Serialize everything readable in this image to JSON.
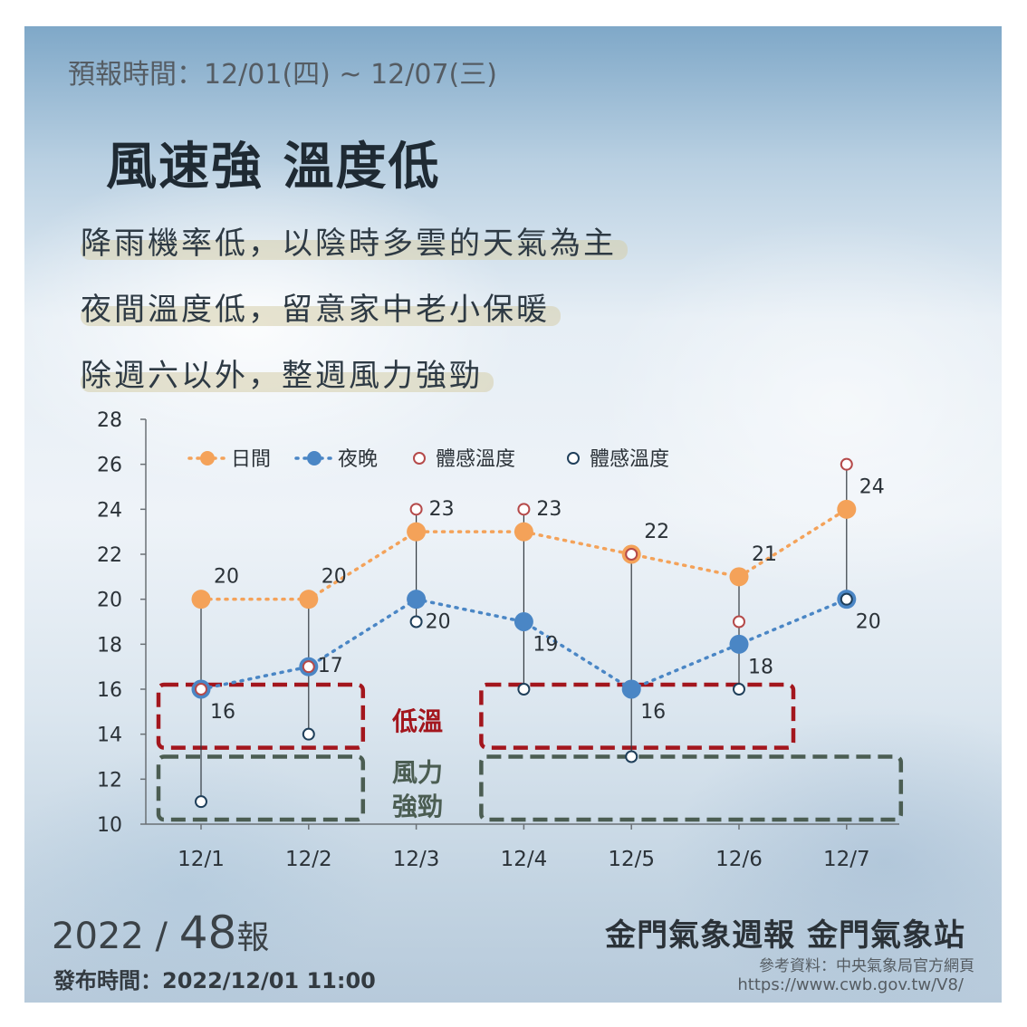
{
  "header": {
    "forecast_period": "預報時間：12/01(四) ~ 12/07(三)",
    "headline": "風速強 溫度低",
    "lines": [
      "降雨機率低，以陰時多雲的天氣為主",
      "夜間溫度低，留意家中老小保暖",
      "除週六以外，整週風力強勁"
    ]
  },
  "chart_data": {
    "type": "line",
    "categories": [
      "12/1",
      "12/2",
      "12/3",
      "12/4",
      "12/5",
      "12/6",
      "12/7"
    ],
    "ylim": [
      10,
      28
    ],
    "yticks": [
      10,
      12,
      14,
      16,
      18,
      20,
      22,
      24,
      26,
      28
    ],
    "grid": false,
    "legend_position": "top",
    "series": [
      {
        "name": "日間",
        "values": [
          20,
          20,
          23,
          23,
          22,
          21,
          24
        ],
        "color": "#f4a259",
        "style": "dotted-filled-marker"
      },
      {
        "name": "夜晚",
        "values": [
          16,
          17,
          20,
          19,
          16,
          18,
          20
        ],
        "color": "#4a86c5",
        "style": "dotted-filled-marker"
      },
      {
        "name": "體感溫度",
        "values": [
          16,
          17,
          24,
          24,
          22,
          19,
          26
        ],
        "color": "#b54a4a",
        "style": "hollow-marker"
      },
      {
        "name": "體感溫度",
        "values": [
          11,
          14,
          19,
          16,
          13,
          16,
          20
        ],
        "color": "#1f3f5a",
        "style": "hollow-marker"
      }
    ],
    "day_labels": [
      "20",
      "20",
      "23",
      "23",
      "22",
      "21",
      "24"
    ],
    "night_labels": [
      "16",
      "17",
      "20",
      "19",
      "16",
      "18",
      "20"
    ],
    "annotations": [
      {
        "label": "低溫",
        "color": "#a3161d",
        "ranges": [
          [
            0,
            1
          ],
          [
            3,
            5
          ]
        ],
        "y_range": [
          13.4,
          16.2
        ]
      },
      {
        "label": "風力強勁",
        "label_lines": [
          "風力",
          "強勁"
        ],
        "color": "#4b5d52",
        "ranges": [
          [
            0,
            1
          ],
          [
            3,
            6
          ]
        ],
        "y_range": [
          10.2,
          13.0
        ]
      }
    ]
  },
  "footer": {
    "year": "2022 /",
    "issue_no": "48",
    "issue_suffix": "報",
    "release_time": "發布時間：2022/12/01 11:00",
    "brand": "金門氣象週報  金門氣象站",
    "ref_label": "參考資料：中央氣象局官方網頁",
    "ref_url": "https://www.cwb.gov.tw/V8/"
  }
}
